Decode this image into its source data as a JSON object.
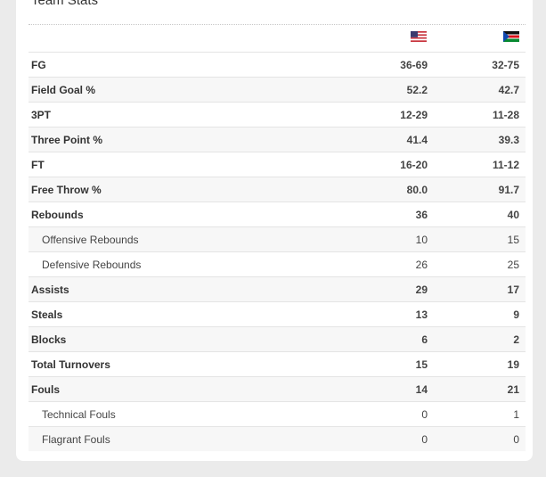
{
  "title": "Team Stats",
  "table": {
    "rows": [
      [
        "FG",
        "36-69",
        "32-75"
      ],
      [
        "Field Goal %",
        "52.2",
        "42.7"
      ],
      [
        "3PT",
        "12-29",
        "11-28"
      ],
      [
        "Three Point %",
        "41.4",
        "39.3"
      ],
      [
        "FT",
        "16-20",
        "11-12"
      ],
      [
        "Free Throw %",
        "80.0",
        "91.7"
      ],
      [
        "Rebounds",
        "36",
        "40"
      ],
      [
        "Offensive Rebounds",
        "10",
        "15"
      ],
      [
        "Defensive Rebounds",
        "26",
        "25"
      ],
      [
        "Assists",
        "29",
        "17"
      ],
      [
        "Steals",
        "13",
        "9"
      ],
      [
        "Blocks",
        "6",
        "2"
      ],
      [
        "Total Turnovers",
        "15",
        "19"
      ],
      [
        "Fouls",
        "14",
        "21"
      ],
      [
        "Technical Fouls",
        "0",
        "1"
      ],
      [
        "Flagrant Fouls",
        "0",
        "0"
      ]
    ]
  }
}
